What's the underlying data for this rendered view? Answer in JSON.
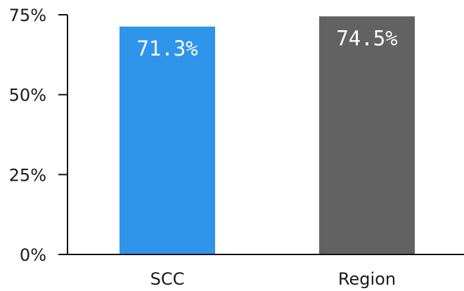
{
  "chart_data": {
    "type": "bar",
    "title": "",
    "xlabel": "",
    "ylabel": "",
    "categories": [
      "SCC",
      "Region"
    ],
    "values": [
      71.3,
      74.5
    ],
    "data_labels": [
      "71.3%",
      "74.5%"
    ],
    "bar_colors": [
      "#2f95ea",
      "#626262"
    ],
    "ylim": [
      0,
      75
    ],
    "yticks": [
      0,
      25,
      50,
      75
    ],
    "ytick_labels": [
      "0%",
      "25%",
      "50%",
      "75%"
    ],
    "grid": false,
    "legend": "none"
  }
}
